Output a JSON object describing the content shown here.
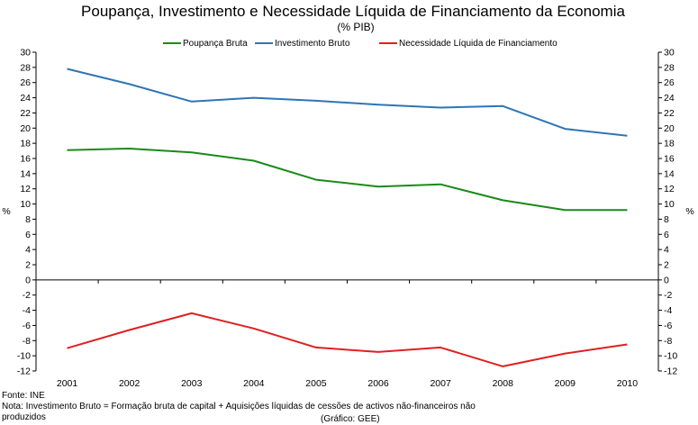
{
  "chart_data": {
    "type": "line",
    "title": "Poupança, Investimento e Necessidade Líquida de Financiamento da Economia",
    "subtitle": "(% PIB)",
    "categories": [
      "2001",
      "2002",
      "2003",
      "2004",
      "2005",
      "2006",
      "2007",
      "2008",
      "2009",
      "2010"
    ],
    "series": [
      {
        "name": "Poupança Bruta",
        "color": "#1a8a1a",
        "values": [
          17.1,
          17.3,
          16.8,
          15.7,
          13.2,
          12.3,
          12.6,
          10.5,
          9.2,
          9.2
        ]
      },
      {
        "name": "Investimento Bruto",
        "color": "#2e75b6",
        "values": [
          27.8,
          25.8,
          23.5,
          24.0,
          23.6,
          23.1,
          22.7,
          22.9,
          19.9,
          19.0
        ]
      },
      {
        "name": "Necessidade Líquida de Financiamento",
        "color": "#e02020",
        "values": [
          -9.0,
          -6.6,
          -4.4,
          -6.4,
          -8.9,
          -9.5,
          -8.9,
          -11.4,
          -9.7,
          -8.5
        ]
      }
    ],
    "ylim": [
      -12,
      30
    ],
    "ytick_step": 2,
    "ylabel_left": "%",
    "ylabel_right": "%",
    "grid": false,
    "legend_position": "top"
  },
  "notes": {
    "source": "Fonte: INE",
    "note_line1": "Nota: Investimento Bruto = Formação bruta de capital + Aquisições líquidas de cessões de activos não-financeiros não",
    "note_line2": "produzidos",
    "credit": "(Gráfico: GEE)"
  }
}
